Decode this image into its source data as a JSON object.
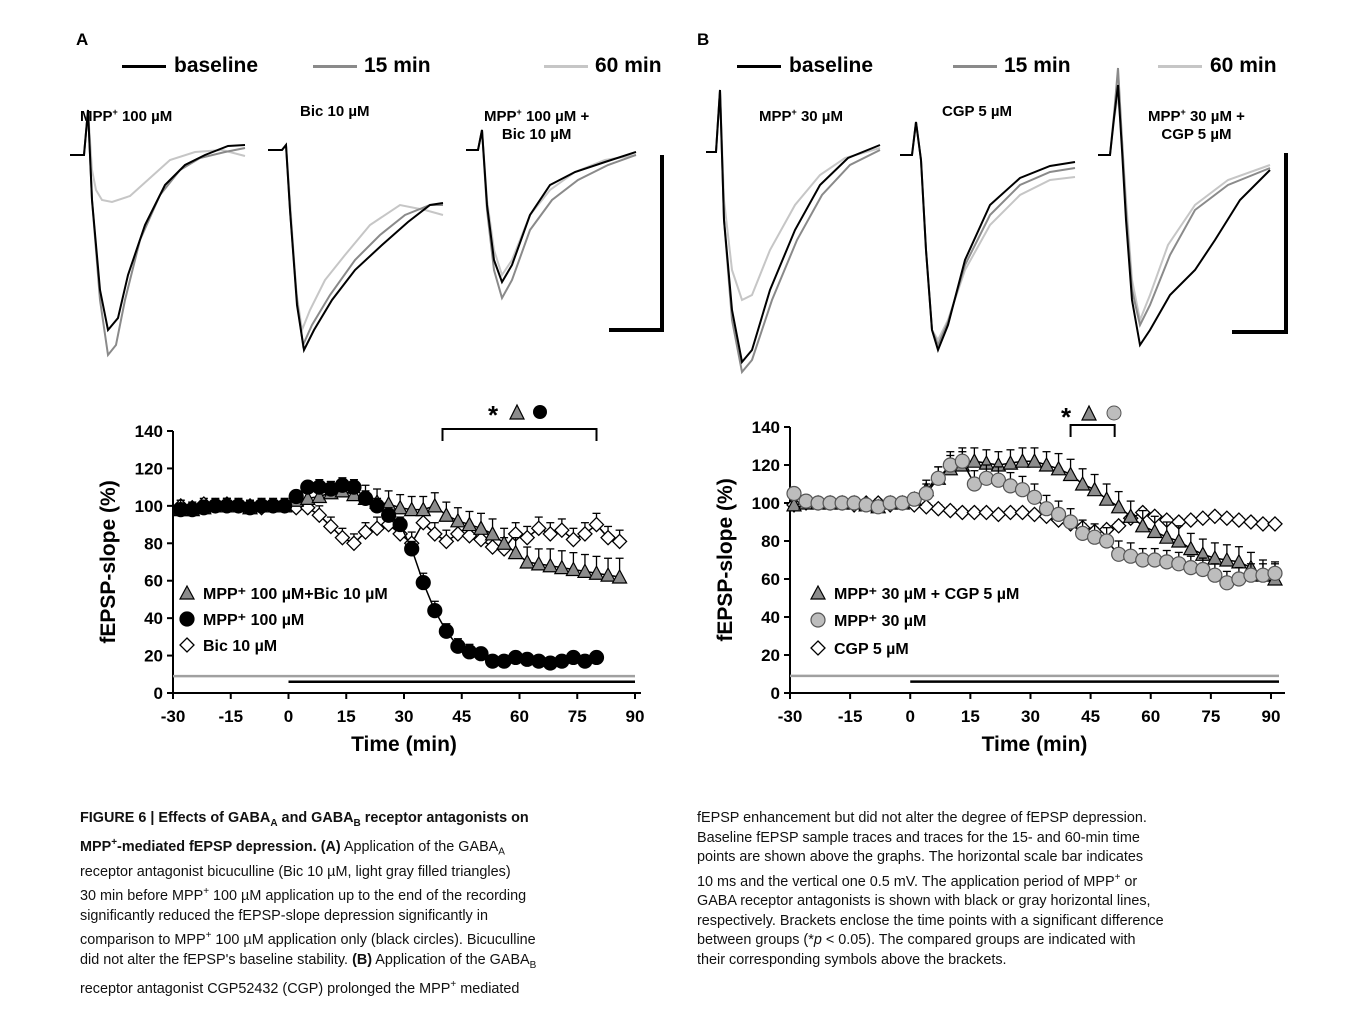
{
  "colors": {
    "baseline": "#000000",
    "min15": "#8a8a8a",
    "min60": "#c6c6c6",
    "triangle_fill": "#8c8c8c",
    "circle_gray": "#bdbdbd",
    "gray_bar": "#a0a0a0"
  },
  "legend": [
    {
      "label": "baseline",
      "color": "#000000"
    },
    {
      "label": "15 min",
      "color": "#8a8a8a"
    },
    {
      "label": "60 min",
      "color": "#c6c6c6"
    }
  ],
  "panel_a": {
    "letter": "A",
    "traces": [
      {
        "label_main": "MPP",
        "label_sup": "+",
        "label_rest": " 100 µM",
        "label_line2": ""
      },
      {
        "label_main": "Bic  10 µM",
        "label_sup": "",
        "label_rest": "",
        "label_line2": ""
      },
      {
        "label_main": "MPP",
        "label_sup": "+",
        "label_rest": " 100 µM +",
        "label_line2": "Bic 10 µM"
      }
    ],
    "significance": {
      "star": "*"
    }
  },
  "panel_b": {
    "letter": "B",
    "traces": [
      {
        "label_main": "MPP",
        "label_sup": "+",
        "label_rest": " 30 µM",
        "label_line2": ""
      },
      {
        "label_main": "CGP 5 µM",
        "label_sup": "",
        "label_rest": "",
        "label_line2": ""
      },
      {
        "label_main": "MPP",
        "label_sup": "+",
        "label_rest": " 30 µM +",
        "label_line2": "CGP 5 µM"
      }
    ],
    "significance": {
      "star": "*"
    }
  },
  "chart_data": [
    {
      "type": "scatter",
      "panel": "A",
      "xlabel": "Time (min)",
      "ylabel": "fEPSP-slope (%)",
      "xlim": [
        -30,
        90
      ],
      "ylim": [
        0,
        140
      ],
      "xticks": [
        -30,
        -15,
        0,
        15,
        30,
        45,
        60,
        75,
        90
      ],
      "yticks": [
        0,
        20,
        40,
        60,
        80,
        100,
        120,
        140
      ],
      "significance_bracket": {
        "x_start": 40,
        "x_end": 80
      },
      "application_lines": [
        {
          "color": "gray",
          "x_start": -30,
          "x_end": 90
        },
        {
          "color": "black",
          "x_start": 0,
          "x_end": 90
        }
      ],
      "series": [
        {
          "name": "MPP⁺ 100 µM+Bic 10 µM",
          "marker": "triangle",
          "x": [
            -28,
            -25,
            -22,
            -19,
            -16,
            -13,
            -10,
            -7,
            -4,
            -1,
            2,
            5,
            8,
            11,
            14,
            17,
            20,
            23,
            26,
            29,
            32,
            35,
            38,
            41,
            44,
            47,
            50,
            53,
            56,
            59,
            62,
            65,
            68,
            71,
            74,
            77,
            80,
            83,
            86
          ],
          "y": [
            98,
            98,
            99,
            100,
            100,
            100,
            99,
            100,
            100,
            100,
            103,
            104,
            105,
            107,
            108,
            106,
            104,
            102,
            101,
            99,
            98,
            98,
            100,
            95,
            92,
            90,
            88,
            85,
            80,
            75,
            70,
            69,
            68,
            67,
            66,
            65,
            64,
            63,
            62
          ],
          "err": [
            5,
            4,
            4,
            4,
            4,
            4,
            4,
            4,
            4,
            4,
            5,
            6,
            6,
            6,
            6,
            6,
            7,
            7,
            7,
            7,
            7,
            7,
            7,
            7,
            7,
            7,
            8,
            8,
            8,
            8,
            8,
            8,
            9,
            9,
            9,
            9,
            9,
            9,
            10
          ]
        },
        {
          "name": "MPP⁺ 100 µM",
          "marker": "circle",
          "x": [
            -28,
            -25,
            -22,
            -19,
            -16,
            -13,
            -10,
            -7,
            -4,
            -1,
            2,
            5,
            8,
            11,
            14,
            17,
            20,
            23,
            26,
            29,
            32,
            35,
            38,
            41,
            44,
            47,
            50,
            53,
            56,
            59,
            62,
            65,
            68,
            71,
            74,
            77,
            80
          ],
          "y": [
            98,
            98,
            99,
            100,
            100,
            100,
            99,
            100,
            100,
            100,
            105,
            110,
            110,
            109,
            111,
            110,
            104,
            100,
            95,
            90,
            77,
            59,
            44,
            33,
            25,
            22,
            21,
            17,
            17,
            19,
            18,
            17,
            16,
            17,
            19,
            17,
            19
          ],
          "err": [
            3,
            3,
            3,
            3,
            3,
            3,
            3,
            3,
            3,
            3,
            3,
            3,
            4,
            4,
            4,
            4,
            4,
            4,
            4,
            4,
            4,
            5,
            5,
            4,
            4,
            4,
            3,
            3,
            3,
            3,
            3,
            3,
            3,
            3,
            3,
            3,
            3
          ]
        },
        {
          "name": "Bic  10 µM",
          "marker": "diamond",
          "x": [
            -28,
            -25,
            -22,
            -19,
            -16,
            -13,
            -10,
            -7,
            -4,
            -1,
            2,
            5,
            8,
            11,
            14,
            17,
            20,
            23,
            26,
            29,
            32,
            35,
            38,
            41,
            44,
            47,
            50,
            53,
            56,
            59,
            62,
            65,
            68,
            71,
            74,
            77,
            80,
            83,
            86
          ],
          "y": [
            100,
            99,
            101,
            100,
            101,
            100,
            100,
            99,
            100,
            100,
            99,
            99,
            95,
            89,
            83,
            80,
            86,
            88,
            90,
            85,
            80,
            91,
            85,
            81,
            85,
            84,
            82,
            78,
            77,
            85,
            83,
            88,
            85,
            87,
            82,
            85,
            90,
            83,
            81
          ],
          "err": [
            3,
            3,
            3,
            3,
            3,
            3,
            3,
            3,
            3,
            3,
            4,
            4,
            5,
            5,
            5,
            5,
            5,
            6,
            6,
            6,
            6,
            6,
            6,
            6,
            6,
            6,
            6,
            6,
            6,
            6,
            6,
            6,
            6,
            6,
            6,
            6,
            6,
            6,
            6
          ]
        }
      ]
    },
    {
      "type": "scatter",
      "panel": "B",
      "xlabel": "Time (min)",
      "ylabel": "fEPSP-slope (%)",
      "xlim": [
        -30,
        92
      ],
      "ylim": [
        0,
        140
      ],
      "xticks": [
        -30,
        -15,
        0,
        15,
        30,
        45,
        60,
        75,
        90
      ],
      "yticks": [
        0,
        20,
        40,
        60,
        80,
        100,
        120,
        140
      ],
      "significance_bracket": {
        "x_start": 40,
        "x_end": 51
      },
      "application_lines": [
        {
          "color": "gray",
          "x_start": -30,
          "x_end": 92
        },
        {
          "color": "black",
          "x_start": 0,
          "x_end": 92
        }
      ],
      "series": [
        {
          "name": "MPP⁺ 30 µM + CGP 5 µM",
          "marker": "triangle",
          "x": [
            -29,
            -26,
            -23,
            -20,
            -17,
            -14,
            -11,
            -8,
            -5,
            -2,
            1,
            4,
            7,
            10,
            13,
            16,
            19,
            22,
            25,
            28,
            31,
            34,
            37,
            40,
            43,
            46,
            49,
            52,
            55,
            58,
            61,
            64,
            67,
            70,
            73,
            76,
            79,
            82,
            85,
            88,
            91
          ],
          "y": [
            99,
            100,
            100,
            100,
            100,
            100,
            99,
            98,
            100,
            100,
            102,
            107,
            113,
            118,
            120,
            122,
            121,
            120,
            121,
            122,
            122,
            120,
            118,
            115,
            110,
            107,
            102,
            98,
            93,
            88,
            85,
            82,
            80,
            76,
            73,
            71,
            70,
            69,
            66,
            62,
            60
          ],
          "err": [
            3,
            3,
            3,
            3,
            3,
            3,
            3,
            3,
            3,
            3,
            3,
            5,
            6,
            7,
            7,
            7,
            7,
            7,
            7,
            7,
            7,
            7,
            8,
            8,
            8,
            8,
            8,
            8,
            8,
            8,
            8,
            8,
            8,
            8,
            8,
            8,
            8,
            8,
            8,
            8,
            8
          ]
        },
        {
          "name": "MPP⁺ 30 µM",
          "marker": "circle",
          "x": [
            -29,
            -26,
            -23,
            -20,
            -17,
            -14,
            -11,
            -8,
            -5,
            -2,
            1,
            4,
            7,
            10,
            13,
            16,
            19,
            22,
            25,
            28,
            31,
            34,
            37,
            40,
            43,
            46,
            49,
            52,
            55,
            58,
            61,
            64,
            67,
            70,
            73,
            76,
            79,
            82,
            85,
            88,
            91
          ],
          "y": [
            105,
            101,
            100,
            100,
            100,
            100,
            99,
            98,
            100,
            100,
            102,
            105,
            113,
            120,
            122,
            110,
            113,
            112,
            109,
            107,
            103,
            97,
            94,
            90,
            84,
            82,
            80,
            73,
            72,
            70,
            70,
            69,
            68,
            66,
            65,
            62,
            58,
            60,
            62,
            62,
            63
          ],
          "err": [
            3,
            3,
            3,
            3,
            3,
            3,
            3,
            3,
            3,
            3,
            3,
            5,
            6,
            7,
            7,
            7,
            7,
            7,
            7,
            7,
            7,
            7,
            7,
            7,
            7,
            7,
            7,
            7,
            7,
            6,
            6,
            6,
            6,
            6,
            6,
            6,
            6,
            6,
            6,
            6,
            6
          ]
        },
        {
          "name": "CGP 5 µM",
          "marker": "diamond",
          "x": [
            -29,
            -26,
            -23,
            -20,
            -17,
            -14,
            -11,
            -8,
            -5,
            -2,
            1,
            4,
            7,
            10,
            13,
            16,
            19,
            22,
            25,
            28,
            31,
            34,
            37,
            40,
            43,
            46,
            49,
            52,
            55,
            58,
            61,
            64,
            67,
            70,
            73,
            76,
            79,
            82,
            85,
            88,
            91
          ],
          "y": [
            99,
            100,
            100,
            100,
            100,
            99,
            100,
            100,
            99,
            100,
            99,
            98,
            97,
            96,
            95,
            95,
            95,
            94,
            95,
            95,
            94,
            93,
            91,
            89,
            87,
            85,
            86,
            88,
            92,
            95,
            93,
            91,
            90,
            91,
            92,
            93,
            92,
            91,
            90,
            89,
            89
          ],
          "err": [
            2,
            2,
            2,
            2,
            2,
            2,
            2,
            2,
            2,
            2,
            2,
            2,
            2,
            2,
            2,
            2,
            2,
            2,
            2,
            2,
            2,
            2,
            2,
            2,
            2,
            2,
            2,
            2,
            2,
            2,
            2,
            2,
            2,
            2,
            2,
            2,
            2,
            2,
            2,
            2,
            2
          ]
        }
      ]
    }
  ],
  "caption": {
    "fig_num": "FIGURE 6 | ",
    "title_1": "Effects of GABA",
    "title_sub_a": "A",
    "title_2": " and GABA",
    "title_sub_b": "B",
    "title_3": " receptor antagonists on",
    "title_4": "MPP",
    "title_sup": "+",
    "title_5": "-mediated fEPSP depression.",
    "a_label": "(A)",
    "a_text_1": " Application of the GABA",
    "a_sub": "A",
    "a_text_2": "receptor antagonist bicuculline (Bic 10 µM, light gray filled triangles)",
    "a_text_3": "30 min before MPP",
    "a_sup": "+",
    "a_text_4": " 100 µM application up to the end of the recording",
    "a_text_5": "significantly reduced the fEPSP-slope depression significantly in",
    "a_text_6": "comparison to MPP",
    "a_text_7": " 100 µM application only (black circles). Bicuculline",
    "a_text_8": "did not alter the fEPSP's baseline stability. ",
    "b_label": "(B)",
    "b_text_1": " Application of the GABA",
    "b_sub": "B",
    "b_text_2": "receptor antagonist CGP52432 (CGP) prolonged the MPP",
    "b_text_3": " mediated",
    "right_1": "fEPSP enhancement but did not alter the degree of fEPSP depression.",
    "right_2": "Baseline fEPSP sample traces and traces for the 15- and 60-min time",
    "right_3": "points are shown above the graphs. The horizontal scale bar indicates",
    "right_4": "10 ms and the vertical one 0.5 mV. The application period of MPP",
    "right_4b": " or",
    "right_5": "GABA receptor antagonists is shown with black or gray horizontal lines,",
    "right_6": "respectively. Brackets enclose the time points with a significant difference",
    "right_7a": "between groups (*",
    "right_7b": "p",
    "right_7c": " < 0.05). The compared groups are indicated with",
    "right_8": "their corresponding symbols above the brackets."
  }
}
